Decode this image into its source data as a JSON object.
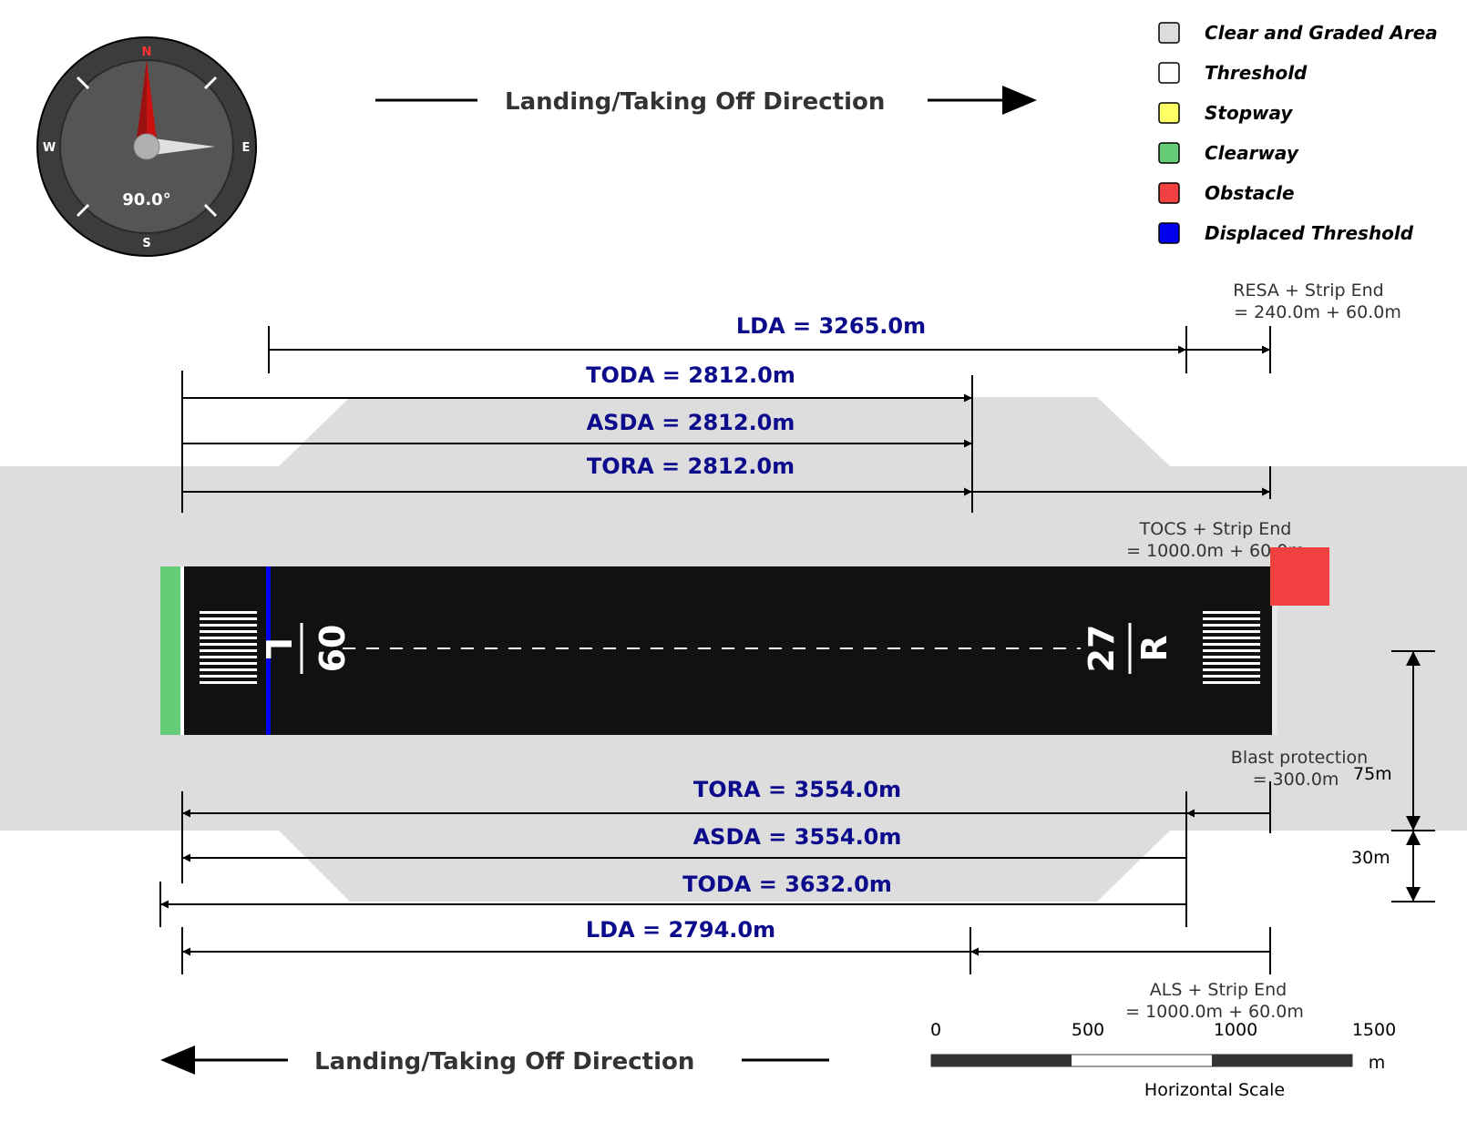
{
  "compass": {
    "heading": "90.0°",
    "heading_deg": 90,
    "north": "N",
    "south": "S",
    "east": "E",
    "west": "W"
  },
  "direction_top": {
    "label": "Landing/Taking Off Direction"
  },
  "direction_bottom": {
    "label": "Landing/Taking Off Direction"
  },
  "legend": [
    {
      "label": "Clear and Graded Area",
      "color": "#dddddd"
    },
    {
      "label": "Threshold",
      "color": "#ffffff"
    },
    {
      "label": "Stopway",
      "color": "#ffff66"
    },
    {
      "label": "Clearway",
      "color": "#66cc77"
    },
    {
      "label": "Obstacle",
      "color": "#f04040"
    },
    {
      "label": "Displaced Threshold",
      "color": "#0000ee"
    }
  ],
  "runway": {
    "left_designator": {
      "number": "09",
      "suffix": "L"
    },
    "right_designator": {
      "number": "27",
      "suffix": "R"
    }
  },
  "top_distances": {
    "lda": "LDA = 3265.0m",
    "toda": "TODA = 2812.0m",
    "asda": "ASDA = 2812.0m",
    "tora": "TORA = 2812.0m",
    "resa_note_line1": "RESA + Strip End",
    "resa_note_line2": "= 240.0m + 60.0m",
    "tocs_note_line1": "TOCS + Strip End",
    "tocs_note_line2": "= 1000.0m + 60.0m"
  },
  "bottom_distances": {
    "tora": "TORA = 3554.0m",
    "asda": "ASDA = 3554.0m",
    "toda": "TODA = 3632.0m",
    "lda": "LDA = 2794.0m",
    "blast_note_line1": "Blast protection",
    "blast_note_line2": "= 300.0m",
    "als_note_line1": "ALS + Strip End",
    "als_note_line2": "= 1000.0m + 60.0m"
  },
  "vertical_dims": {
    "upper": "75m",
    "lower": "30m"
  },
  "scale": {
    "ticks": [
      "0",
      "500",
      "1000",
      "1500"
    ],
    "unit": "m",
    "title": "Horizontal Scale"
  }
}
